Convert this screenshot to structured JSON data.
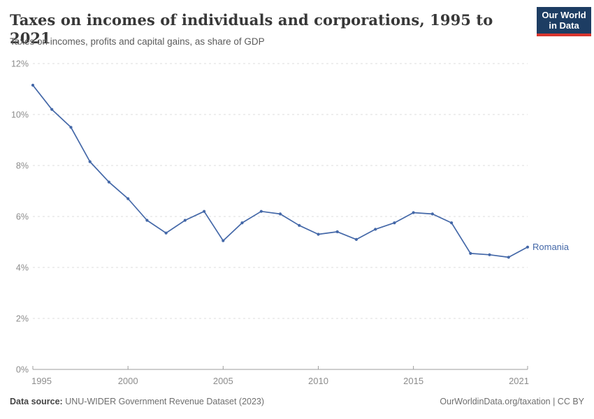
{
  "header": {
    "title": "Taxes on incomes of individuals and corporations, 1995 to 2021",
    "subtitle": "Taxes on incomes, profits and capital gains, as share of GDP"
  },
  "logo": {
    "line1": "Our World",
    "line2": "in Data",
    "bg_color": "#1d3d63",
    "bar_color": "#d8352e"
  },
  "chart_data": {
    "type": "line",
    "title": "Taxes on incomes of individuals and corporations, 1995 to 2021",
    "xlabel": "",
    "ylabel": "",
    "xlim": [
      1995,
      2021
    ],
    "ylim": [
      0,
      12
    ],
    "grid": "horizontal-dashed",
    "legend_position": "end-of-line-label",
    "x_tick_years": [
      1995,
      2000,
      2005,
      2010,
      2015,
      2021
    ],
    "x_tick_labels": [
      "1995",
      "2000",
      "2005",
      "2010",
      "2015",
      "2021"
    ],
    "y_tick_values": [
      0,
      2,
      4,
      6,
      8,
      10,
      12
    ],
    "y_tick_labels": [
      "0%",
      "2%",
      "4%",
      "6%",
      "8%",
      "10%",
      "12%"
    ],
    "series": [
      {
        "name": "Romania",
        "color": "#4468a8",
        "x": [
          1995,
          1996,
          1997,
          1998,
          1999,
          2000,
          2001,
          2002,
          2003,
          2004,
          2005,
          2006,
          2007,
          2008,
          2009,
          2010,
          2011,
          2012,
          2013,
          2014,
          2015,
          2016,
          2017,
          2018,
          2019,
          2020,
          2021
        ],
        "values": [
          11.15,
          10.2,
          9.5,
          8.15,
          7.35,
          6.7,
          5.85,
          5.35,
          5.85,
          6.2,
          5.05,
          5.75,
          6.2,
          6.1,
          5.65,
          5.3,
          5.4,
          5.1,
          5.5,
          5.75,
          6.15,
          6.1,
          5.75,
          4.55,
          4.5,
          4.4,
          4.8
        ]
      }
    ],
    "colors": {
      "grid": "#dcdcdc",
      "axis": "#9e9e9e",
      "tick_text": "#8c8c8c"
    }
  },
  "footer": {
    "datasource_label": "Data source:",
    "datasource_text": "UNU-WIDER Government Revenue Dataset (2023)",
    "credit": "OurWorldinData.org/taxation | CC BY"
  }
}
